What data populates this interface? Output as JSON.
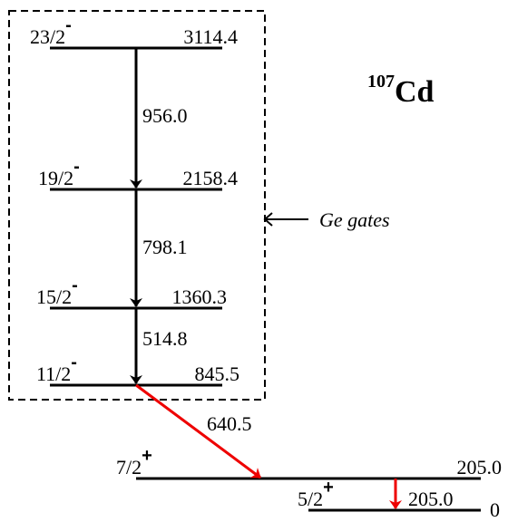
{
  "title": {
    "mass": "107",
    "element": "Cd"
  },
  "gate_label": "Ge gates",
  "levels": [
    {
      "spin": "23/2",
      "parity": "-",
      "energy": "3114.4"
    },
    {
      "spin": "19/2",
      "parity": "-",
      "energy": "2158.4"
    },
    {
      "spin": "15/2",
      "parity": "-",
      "energy": "1360.3"
    },
    {
      "spin": "11/2",
      "parity": "-",
      "energy": "845.5"
    },
    {
      "spin": "7/2",
      "parity": "+",
      "energy": "205.0"
    },
    {
      "spin": "5/2",
      "parity": "+",
      "energy": "0"
    }
  ],
  "transitions": [
    {
      "energy": "956.0"
    },
    {
      "energy": "798.1"
    },
    {
      "energy": "514.8"
    },
    {
      "energy": "640.5"
    },
    {
      "energy": "205.0"
    }
  ]
}
